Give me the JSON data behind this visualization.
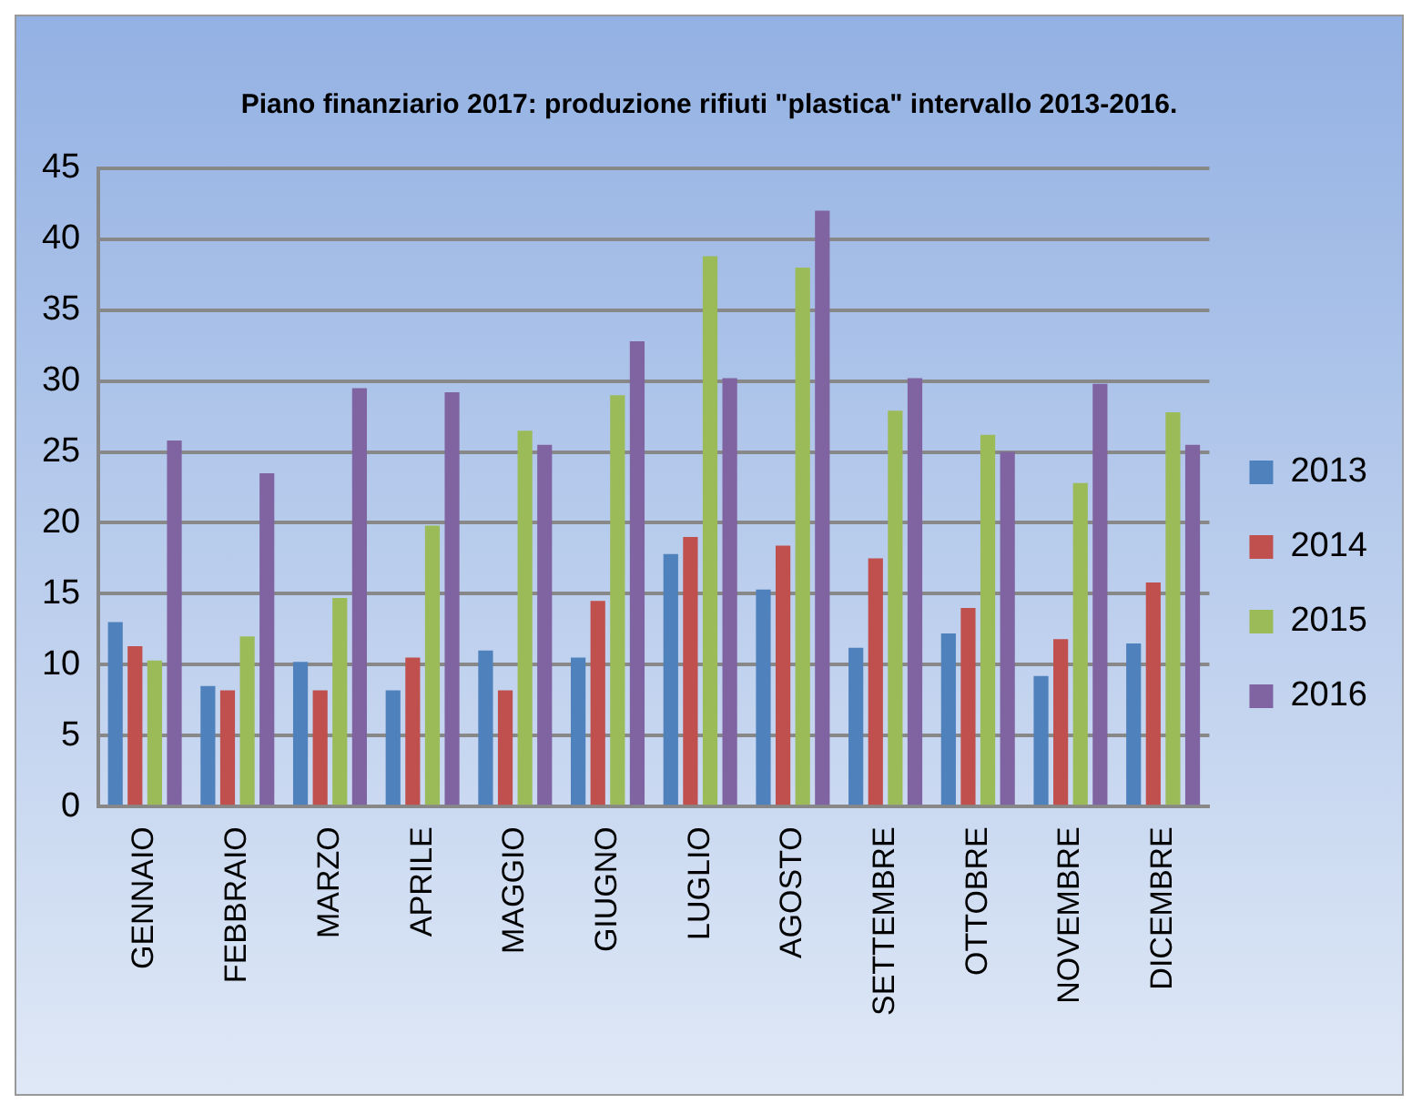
{
  "chart_data": {
    "type": "bar",
    "title": "Piano finanziario 2017: produzione rifiuti \"plastica\" intervallo 2013-2016.",
    "categories": [
      "GENNAIO",
      "FEBBRAIO",
      "MARZO",
      "APRILE",
      "MAGGIO",
      "GIUGNO",
      "LUGLIO",
      "AGOSTO",
      "SETTEMBRE",
      "OTTOBRE",
      "NOVEMBRE",
      "DICEMBRE"
    ],
    "series": [
      {
        "name": "2013",
        "color": "#4f81bd",
        "values": [
          13,
          8.5,
          10.2,
          8.2,
          11,
          10.5,
          17.8,
          15.3,
          11.2,
          12.2,
          9.2,
          11.5
        ]
      },
      {
        "name": "2014",
        "color": "#c0504d",
        "values": [
          11.3,
          8.2,
          8.2,
          10.5,
          8.2,
          14.5,
          19,
          18.4,
          17.5,
          14,
          11.8,
          15.8
        ]
      },
      {
        "name": "2015",
        "color": "#9bbb59",
        "values": [
          10.3,
          12,
          14.7,
          19.8,
          26.5,
          29,
          38.8,
          38,
          27.9,
          26.2,
          22.8,
          27.8
        ]
      },
      {
        "name": "2016",
        "color": "#8064a2",
        "values": [
          25.8,
          23.5,
          29.5,
          29.2,
          25.5,
          32.8,
          30.2,
          42,
          30.2,
          25,
          29.8,
          25.5
        ]
      }
    ],
    "ylim": [
      0,
      45
    ],
    "yticks": [
      0,
      5,
      10,
      15,
      20,
      25,
      30,
      35,
      40,
      45
    ],
    "grid": "y",
    "legend": "right"
  }
}
